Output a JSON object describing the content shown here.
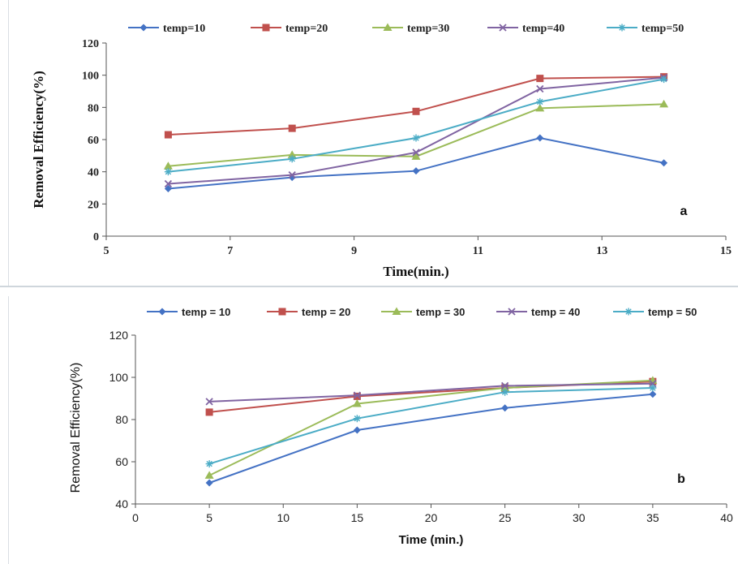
{
  "colors": {
    "temp10": "#4472C4",
    "temp20": "#C0504D",
    "temp30": "#9BBB59",
    "temp40": "#8064A2",
    "temp50": "#4BACC6",
    "axis": "#555555"
  },
  "chart_data": [
    {
      "type": "line",
      "panel_label": "a",
      "xlabel": "Time(min.)",
      "ylabel": "Removal Efficiency(%)",
      "xlim": [
        5,
        15
      ],
      "ylim": [
        0,
        120
      ],
      "xticks": [
        5,
        7,
        9,
        11,
        13,
        15
      ],
      "yticks": [
        0,
        20,
        40,
        60,
        80,
        100,
        120
      ],
      "grid": false,
      "legend_position": "top",
      "x": [
        6,
        8,
        10,
        12,
        14
      ],
      "series": [
        {
          "name": "temp=10",
          "color_key": "temp10",
          "marker": "diamond",
          "values": [
            29.5,
            36.5,
            40.5,
            61,
            45.5
          ]
        },
        {
          "name": "temp=20",
          "color_key": "temp20",
          "marker": "square",
          "values": [
            63,
            67,
            77.5,
            98,
            99
          ]
        },
        {
          "name": "temp=30",
          "color_key": "temp30",
          "marker": "triangle",
          "values": [
            43.5,
            50.5,
            49.5,
            79.5,
            82
          ]
        },
        {
          "name": "temp=40",
          "color_key": "temp40",
          "marker": "x",
          "values": [
            32.5,
            38,
            52,
            91.5,
            98.5
          ]
        },
        {
          "name": "temp=50",
          "color_key": "temp50",
          "marker": "star",
          "values": [
            40,
            48,
            61,
            83.5,
            97.5
          ]
        }
      ]
    },
    {
      "type": "line",
      "panel_label": "b",
      "xlabel": "Time (min.)",
      "ylabel": "Removal Efficiency(%)",
      "xlim": [
        0,
        40
      ],
      "ylim": [
        40,
        120
      ],
      "xticks": [
        0,
        5,
        10,
        15,
        20,
        25,
        30,
        35,
        40
      ],
      "yticks": [
        40,
        60,
        80,
        100,
        120
      ],
      "grid": false,
      "legend_position": "top",
      "x": [
        5,
        15,
        25,
        35
      ],
      "series": [
        {
          "name": "temp = 10",
          "color_key": "temp10",
          "marker": "diamond",
          "values": [
            50,
            75,
            85.5,
            92
          ]
        },
        {
          "name": "temp = 20",
          "color_key": "temp20",
          "marker": "square",
          "values": [
            83.5,
            91,
            95,
            98
          ]
        },
        {
          "name": "temp = 30",
          "color_key": "temp30",
          "marker": "triangle",
          "values": [
            53.5,
            87.5,
            95,
            98.5
          ]
        },
        {
          "name": "temp = 40",
          "color_key": "temp40",
          "marker": "x",
          "values": [
            88.5,
            91.5,
            96,
            97
          ]
        },
        {
          "name": "temp = 50",
          "color_key": "temp50",
          "marker": "star",
          "values": [
            59,
            80.5,
            93,
            95
          ]
        }
      ]
    }
  ]
}
